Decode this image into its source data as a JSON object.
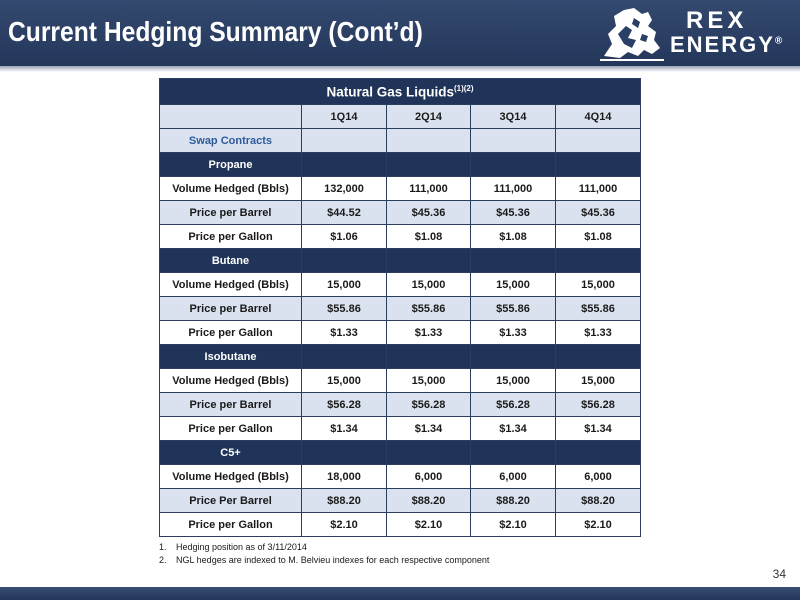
{
  "slide": {
    "title": "Current Hedging Summary (Cont’d)",
    "page_number": "34"
  },
  "logo": {
    "line1": "REX",
    "line2": "ENERGY",
    "reg": "®",
    "icon": "lion-knight-emblem-icon"
  },
  "table": {
    "title": "Natural Gas Liquids",
    "title_superscript": "(1)(2)",
    "columns": [
      "1Q14",
      "2Q14",
      "3Q14",
      "4Q14"
    ],
    "swap_label": "Swap Contracts",
    "sections": [
      {
        "name": "Propane",
        "rows": [
          {
            "label": "Volume Hedged (Bbls)",
            "values": [
              "132,000",
              "111,000",
              "111,000",
              "111,000"
            ]
          },
          {
            "label": "Price per Barrel",
            "values": [
              "$44.52",
              "$45.36",
              "$45.36",
              "$45.36"
            ]
          },
          {
            "label": "Price per Gallon",
            "values": [
              "$1.06",
              "$1.08",
              "$1.08",
              "$1.08"
            ]
          }
        ]
      },
      {
        "name": "Butane",
        "rows": [
          {
            "label": "Volume Hedged (Bbls)",
            "values": [
              "15,000",
              "15,000",
              "15,000",
              "15,000"
            ]
          },
          {
            "label": "Price per Barrel",
            "values": [
              "$55.86",
              "$55.86",
              "$55.86",
              "$55.86"
            ]
          },
          {
            "label": "Price per Gallon",
            "values": [
              "$1.33",
              "$1.33",
              "$1.33",
              "$1.33"
            ]
          }
        ]
      },
      {
        "name": "Isobutane",
        "rows": [
          {
            "label": "Volume Hedged (Bbls)",
            "values": [
              "15,000",
              "15,000",
              "15,000",
              "15,000"
            ]
          },
          {
            "label": "Price per Barrel",
            "values": [
              "$56.28",
              "$56.28",
              "$56.28",
              "$56.28"
            ]
          },
          {
            "label": "Price per Gallon",
            "values": [
              "$1.34",
              "$1.34",
              "$1.34",
              "$1.34"
            ]
          }
        ]
      },
      {
        "name": "C5+",
        "rows": [
          {
            "label": "Volume Hedged (Bbls)",
            "values": [
              "18,000",
              "6,000",
              "6,000",
              "6,000"
            ]
          },
          {
            "label": "Price Per Barrel",
            "values": [
              "$88.20",
              "$88.20",
              "$88.20",
              "$88.20"
            ]
          },
          {
            "label": "Price per Gallon",
            "values": [
              "$2.10",
              "$2.10",
              "$2.10",
              "$2.10"
            ]
          }
        ]
      }
    ]
  },
  "footnotes": [
    {
      "num": "1.",
      "text": "Hedging position as of 3/11/2014"
    },
    {
      "num": "2.",
      "text": "NGL hedges are indexed to M. Belvieu indexes for each respective component"
    }
  ],
  "colors": {
    "header_navy": "#24375b",
    "section_navy": "#1f3458",
    "row_shade": "#dbe2ef",
    "swap_label_blue": "#2d5b9a"
  }
}
